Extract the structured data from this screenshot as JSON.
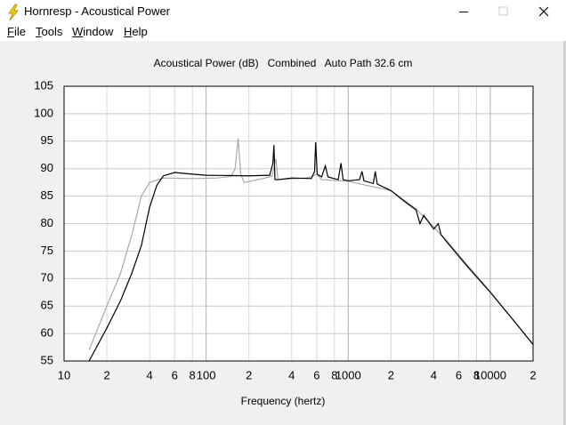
{
  "window": {
    "title": "Hornresp - Acoustical Power"
  },
  "menu": [
    "File",
    "Tools",
    "Window",
    "Help"
  ],
  "chart_data": {
    "type": "line",
    "title": "Acoustical Power (dB)   Combined   Auto Path 32.6 cm",
    "x_label": "Frequency (hertz)",
    "log_x": true,
    "grid": true,
    "xlim": [
      10,
      20000
    ],
    "xticks": [
      10,
      {
        "value": 20,
        "label": "2"
      },
      {
        "value": 40,
        "label": "4"
      },
      {
        "value": 60,
        "label": "6"
      },
      {
        "value": 80,
        "label": "8"
      },
      100,
      {
        "value": 200,
        "label": "2"
      },
      {
        "value": 400,
        "label": "4"
      },
      {
        "value": 600,
        "label": "6"
      },
      {
        "value": 800,
        "label": "8"
      },
      1000,
      {
        "value": 2000,
        "label": "2"
      },
      {
        "value": 4000,
        "label": "4"
      },
      {
        "value": 6000,
        "label": "6"
      },
      {
        "value": 8000,
        "label": "8"
      },
      10000,
      {
        "value": 20000,
        "label": "2"
      }
    ],
    "ylim": [
      55,
      105
    ],
    "yticks": [
      55,
      60,
      65,
      70,
      75,
      80,
      85,
      90,
      95,
      100,
      105
    ],
    "series": [
      {
        "color": "#a8a8a8",
        "x": [
          15,
          20,
          25,
          30,
          35,
          40,
          50,
          80,
          120,
          150,
          160,
          168,
          175,
          185,
          250,
          290,
          310,
          320,
          500,
          550,
          600,
          650,
          1000,
          2000,
          3000,
          5000,
          10000,
          20000
        ],
        "values": [
          57,
          65,
          71,
          78,
          85,
          87.5,
          88.3,
          88.2,
          88.3,
          88.6,
          90,
          95.5,
          89,
          87.5,
          88.2,
          88.6,
          91.8,
          88,
          88.3,
          88.5,
          89,
          88,
          87.7,
          86,
          82.7,
          76.7,
          67.6,
          58
        ]
      },
      {
        "color": "#000000",
        "x": [
          15,
          20,
          25,
          30,
          35,
          40,
          45,
          50,
          60,
          80,
          100,
          200,
          280,
          295,
          300,
          305,
          320,
          400,
          550,
          580,
          590,
          605,
          650,
          690,
          720,
          850,
          890,
          920,
          1000,
          1200,
          1250,
          1290,
          1500,
          1550,
          1600,
          2000,
          2500,
          3000,
          3200,
          3400,
          4000,
          4300,
          4500,
          5000,
          7000,
          10000,
          15000,
          20000
        ],
        "values": [
          55,
          61,
          66,
          71,
          76,
          83,
          87,
          88.7,
          89.3,
          89,
          88.8,
          88.7,
          88.8,
          91,
          94.3,
          88,
          88,
          88.3,
          88.2,
          89.5,
          94.8,
          89,
          88.5,
          90.5,
          88.5,
          88,
          91,
          88,
          87.8,
          88,
          89.5,
          87.8,
          87.3,
          89.5,
          87.2,
          86,
          84,
          82.5,
          80,
          81.5,
          79,
          80,
          78,
          76.5,
          72,
          67.5,
          62,
          58
        ]
      }
    ]
  }
}
